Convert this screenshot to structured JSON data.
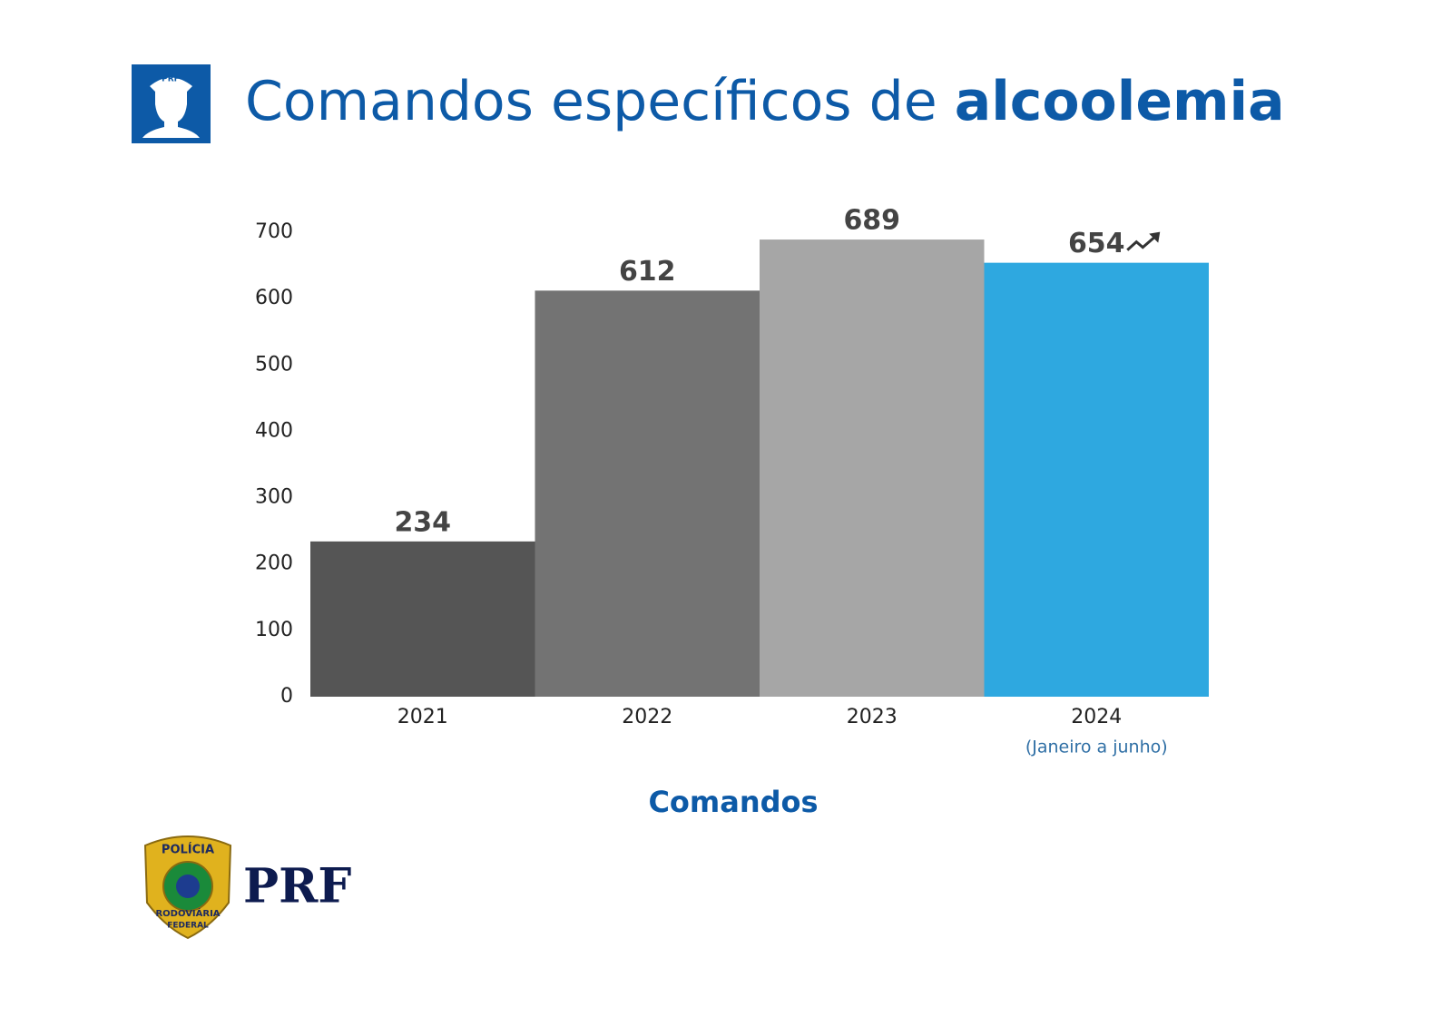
{
  "chart_data": {
    "type": "bar",
    "title": [
      "Comandos específicos de",
      "alcoolemia"
    ],
    "categories": [
      "2021",
      "2022",
      "2023",
      "2024"
    ],
    "values": [
      234,
      612,
      689,
      654
    ],
    "colors": [
      "#555555",
      "#737373",
      "#a6a6a6",
      "#2ea8e0"
    ],
    "category_note": {
      "index": 3,
      "text": "(Janeiro a junho)"
    },
    "xlabel": "Comandos",
    "ylim": [
      0,
      700
    ],
    "yticks": [
      0,
      100,
      200,
      300,
      400,
      500,
      600,
      700
    ],
    "grid": false,
    "logo": {
      "icon_text": "PRF",
      "badge_top": "POLÍCIA",
      "badge_bottom": "RODOVIÁRIA",
      "badge_foot": "FEDERAL",
      "name": "PRF"
    }
  }
}
